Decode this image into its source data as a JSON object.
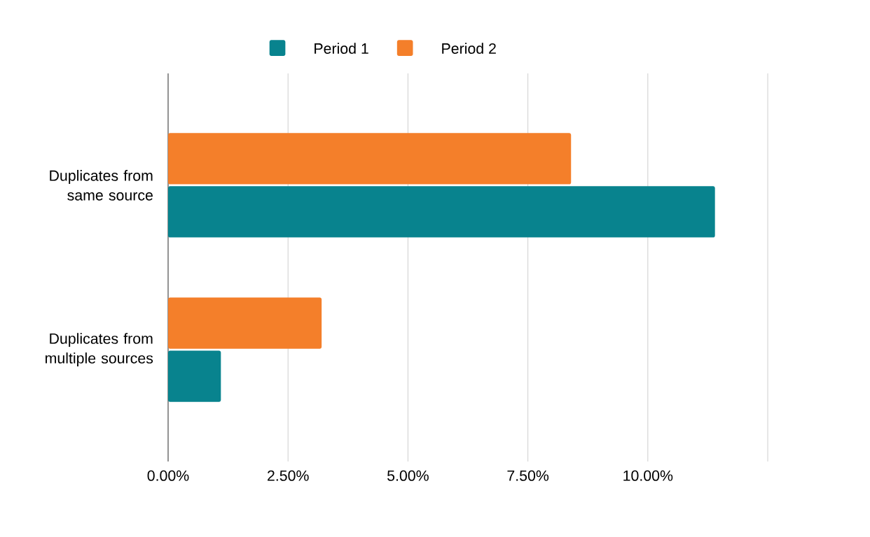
{
  "chart_data": {
    "type": "bar",
    "orientation": "horizontal",
    "categories": [
      "Duplicates from same source",
      "Duplicates from multiple sources"
    ],
    "series": [
      {
        "name": "Period 1",
        "color": "#08838e",
        "values": [
          11.4,
          1.1
        ]
      },
      {
        "name": "Period 2",
        "color": "#f47f2a",
        "values": [
          8.4,
          3.2
        ]
      }
    ],
    "xlim": [
      0,
      12.5
    ],
    "xticks": [
      {
        "value": 0,
        "label": "0.00%"
      },
      {
        "value": 2.5,
        "label": "2.50%"
      },
      {
        "value": 5,
        "label": "5.00%"
      },
      {
        "value": 7.5,
        "label": "7.50%"
      },
      {
        "value": 10,
        "label": "10.00%"
      },
      {
        "value": 12.5,
        "label": null
      }
    ],
    "grid": "x",
    "legend": "top"
  }
}
